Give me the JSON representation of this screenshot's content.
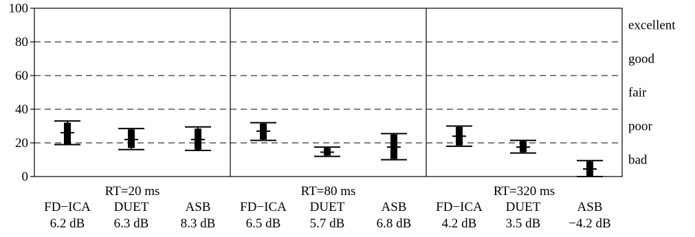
{
  "chart_data": {
    "type": "errorbar",
    "ylim": [
      0,
      100
    ],
    "yticks": [
      "0",
      "20",
      "40",
      "60",
      "80",
      "100"
    ],
    "ytick_values": [
      0,
      20,
      40,
      60,
      80,
      100
    ],
    "grid_lines": [
      20,
      40,
      60,
      80
    ],
    "grid": "dashed horizontal",
    "ratings": [
      {
        "label": "excellent",
        "value": 90
      },
      {
        "label": "good",
        "value": 70
      },
      {
        "label": "fair",
        "value": 50
      },
      {
        "label": "poor",
        "value": 30
      },
      {
        "label": "bad",
        "value": 10
      }
    ],
    "groups": [
      {
        "label": "RT=20 ms",
        "methods": [
          {
            "name": "FD−ICA",
            "snr": "6.2 dB",
            "mean": 26,
            "low": 19,
            "high": 33,
            "box_low": 19,
            "box_high": 32
          },
          {
            "name": "DUET",
            "snr": "6.3 dB",
            "mean": 22,
            "low": 16,
            "high": 28.5,
            "box_low": 17,
            "box_high": 28
          },
          {
            "name": "ASB",
            "snr": "8.3 dB",
            "mean": 22,
            "low": 15.5,
            "high": 29.5,
            "box_low": 16,
            "box_high": 28.5
          }
        ]
      },
      {
        "label": "RT=80 ms",
        "methods": [
          {
            "name": "FD−ICA",
            "snr": "6.5 dB",
            "mean": 27,
            "low": 21.5,
            "high": 32,
            "box_low": 22,
            "box_high": 31.5
          },
          {
            "name": "DUET",
            "snr": "5.7 dB",
            "mean": 14.5,
            "low": 12,
            "high": 17.5,
            "box_low": 12.5,
            "box_high": 17
          },
          {
            "name": "ASB",
            "snr": "6.8 dB",
            "mean": 17.5,
            "low": 10,
            "high": 25.5,
            "box_low": 10.5,
            "box_high": 25
          }
        ]
      },
      {
        "label": "RT=320 ms",
        "methods": [
          {
            "name": "FD−ICA",
            "snr": "4.2 dB",
            "mean": 24,
            "low": 18,
            "high": 30,
            "box_low": 18.5,
            "box_high": 29.5
          },
          {
            "name": "DUET",
            "snr": "3.5 dB",
            "mean": 17.5,
            "low": 14,
            "high": 21.5,
            "box_low": 14.5,
            "box_high": 21
          },
          {
            "name": "ASB",
            "snr": "−4.2 dB",
            "mean": 4.5,
            "low": 0,
            "high": 9.5,
            "box_low": 0,
            "box_high": 9
          }
        ]
      }
    ]
  }
}
